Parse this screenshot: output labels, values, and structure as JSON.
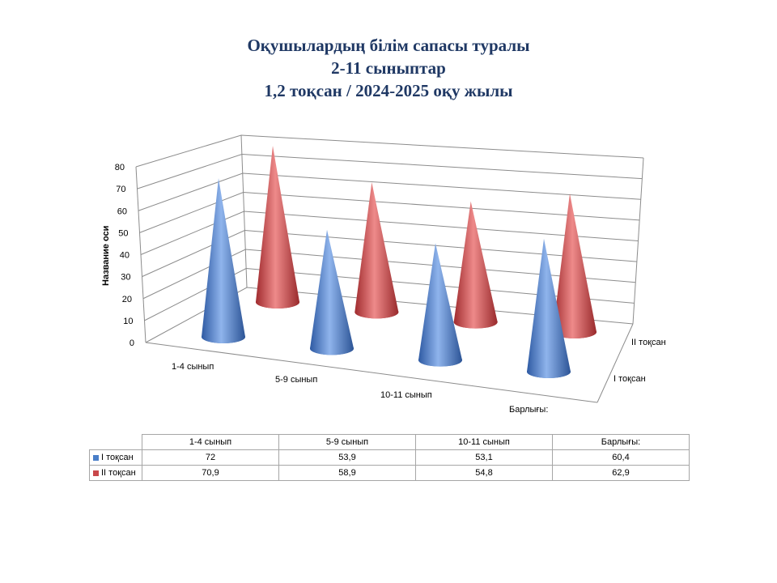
{
  "title": {
    "line1": "Оқушылардың білім сапасы туралы",
    "line2": "2-11 сыныптар",
    "line3": "1,2 тоқсан / 2024-2025 оқу жылы"
  },
  "chart_data": {
    "type": "bar",
    "subtype": "3d-cone",
    "categories": [
      "1-4 сынып",
      "5-9 сынып",
      "10-11 сынып",
      "Барлығы:"
    ],
    "series": [
      {
        "name": "I тоқсан",
        "values": [
          72,
          53.9,
          53.1,
          60.4
        ],
        "color": "#4a7ec8"
      },
      {
        "name": "II тоқсан",
        "values": [
          70.9,
          58.9,
          54.8,
          62.9
        ],
        "color": "#c9474a"
      }
    ],
    "ylabel": "Название оси",
    "ylim": [
      0,
      80
    ],
    "yticks": [
      0,
      10,
      20,
      30,
      40,
      50,
      60,
      70,
      80
    ],
    "grid": true,
    "data_table": true
  },
  "table": {
    "headers": [
      "1-4 сынып",
      "5-9 сынып",
      "10-11 сынып",
      "Барлығы:"
    ],
    "rows": [
      {
        "label": "I тоқсан",
        "values": [
          "72",
          "53,9",
          "53,1",
          "60,4"
        ],
        "color": "#4a7ec8"
      },
      {
        "label": "II тоқсан",
        "values": [
          "70,9",
          "58,9",
          "54,8",
          "62,9"
        ],
        "color": "#c9474a"
      }
    ]
  }
}
